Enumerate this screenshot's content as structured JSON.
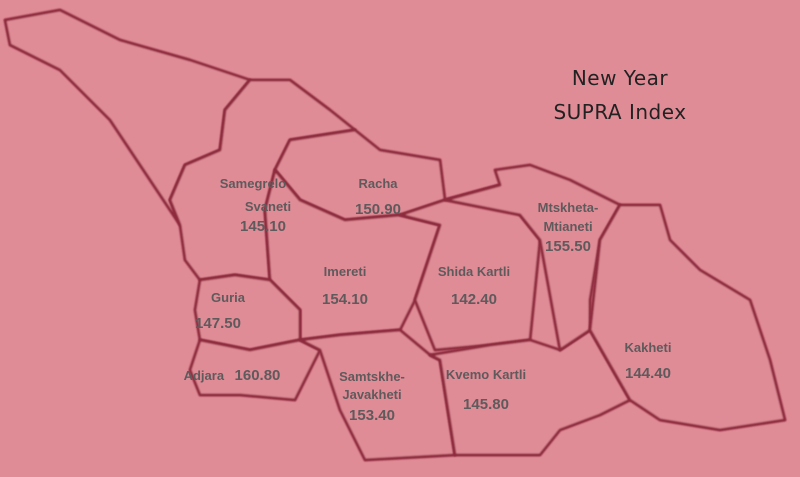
{
  "title": {
    "line1": "New Year",
    "line2": "SUPRA Index"
  },
  "colors": {
    "background": "#e08c97",
    "border": "#8e2a3c",
    "label": "#5f5a5c"
  },
  "regions": [
    {
      "name_line1": "Samegrelo",
      "name_line2": "Svaneti",
      "value": "145.10"
    },
    {
      "name_line1": "Racha",
      "value": "150.90"
    },
    {
      "name_line1": "Imereti",
      "value": "154.10"
    },
    {
      "name_line1": "Guria",
      "value": "147.50"
    },
    {
      "name_line1": "Adjara",
      "value": "160.80"
    },
    {
      "name_line1": "Samtskhe-",
      "name_line2": "Javakheti",
      "value": "153.40"
    },
    {
      "name_line1": "Shida Kartli",
      "value": "142.40"
    },
    {
      "name_line1": "Kvemo Kartli",
      "value": "145.80"
    },
    {
      "name_line1": "Mtskheta-",
      "name_line2": "Mtianeti",
      "value": "155.50"
    },
    {
      "name_line1": "Kakheti",
      "value": "144.40"
    }
  ]
}
